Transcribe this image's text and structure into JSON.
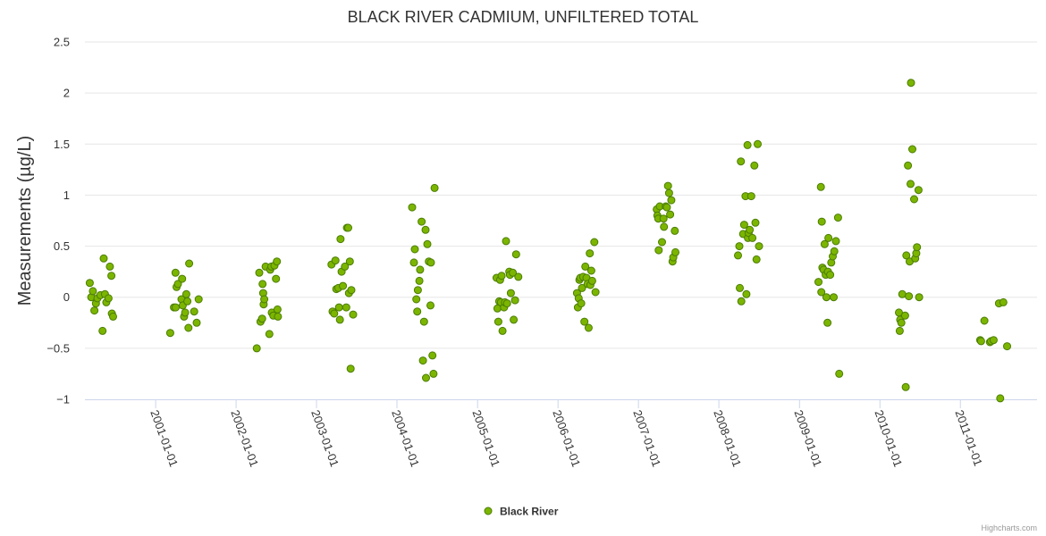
{
  "chart_data": {
    "type": "scatter",
    "title": "BLACK RIVER CADMIUM, UNFILTERED TOTAL",
    "ylabel": "Measurements (µg/L)",
    "xlabel": "",
    "ylim": [
      -1,
      2.5
    ],
    "yticks": [
      "−1",
      "−0.5",
      "0",
      "0.5",
      "1",
      "1.5",
      "2",
      "2.5"
    ],
    "ytick_values": [
      -1,
      -0.5,
      0,
      0.5,
      1,
      1.5,
      2,
      2.5
    ],
    "xlim": [
      "2000-02-15",
      "2011-12-15"
    ],
    "xticks": [
      "2001-01-01",
      "2002-01-01",
      "2003-01-01",
      "2004-01-01",
      "2005-01-01",
      "2006-01-01",
      "2007-01-01",
      "2008-01-01",
      "2009-01-01",
      "2010-01-01",
      "2011-01-01"
    ],
    "color": "#7cb500",
    "marker_stroke": "#4a7d00",
    "legend": {
      "placement": "bottom-center",
      "label": "Black River"
    },
    "credits": "Highcharts.com",
    "series": [
      {
        "name": "Black River",
        "points": [
          [
            "2000-03-08",
            0.14
          ],
          [
            "2000-03-15",
            0.0
          ],
          [
            "2000-03-22",
            0.06
          ],
          [
            "2000-03-29",
            -0.13
          ],
          [
            "2000-04-05",
            -0.06
          ],
          [
            "2000-04-12",
            -0.01
          ],
          [
            "2000-04-25",
            0.02
          ],
          [
            "2000-05-05",
            -0.33
          ],
          [
            "2000-05-10",
            0.38
          ],
          [
            "2000-05-16",
            0.03
          ],
          [
            "2000-05-22",
            -0.05
          ],
          [
            "2000-06-01",
            -0.01
          ],
          [
            "2000-06-07",
            0.3
          ],
          [
            "2000-06-14",
            0.21
          ],
          [
            "2000-06-16",
            -0.16
          ],
          [
            "2000-06-22",
            -0.19
          ],
          [
            "2001-03-08",
            -0.35
          ],
          [
            "2001-03-25",
            -0.1
          ],
          [
            "2001-04-01",
            0.24
          ],
          [
            "2001-04-02",
            -0.1
          ],
          [
            "2001-04-06",
            0.1
          ],
          [
            "2001-04-12",
            0.13
          ],
          [
            "2001-04-28",
            -0.02
          ],
          [
            "2001-05-01",
            0.18
          ],
          [
            "2001-05-04",
            -0.08
          ],
          [
            "2001-05-10",
            -0.19
          ],
          [
            "2001-05-15",
            -0.15
          ],
          [
            "2001-05-20",
            0.03
          ],
          [
            "2001-05-25",
            -0.04
          ],
          [
            "2001-05-30",
            -0.3
          ],
          [
            "2001-06-02",
            0.33
          ],
          [
            "2001-06-25",
            -0.14
          ],
          [
            "2001-07-06",
            -0.25
          ],
          [
            "2001-07-15",
            -0.02
          ],
          [
            "2002-04-05",
            -0.5
          ],
          [
            "2002-04-16",
            0.24
          ],
          [
            "2002-04-22",
            -0.24
          ],
          [
            "2002-04-29",
            -0.21
          ],
          [
            "2002-05-01",
            0.13
          ],
          [
            "2002-05-04",
            0.04
          ],
          [
            "2002-05-06",
            -0.07
          ],
          [
            "2002-05-09",
            -0.02
          ],
          [
            "2002-05-15",
            0.3
          ],
          [
            "2002-06-01",
            -0.36
          ],
          [
            "2002-06-05",
            0.27
          ],
          [
            "2002-06-10",
            0.3
          ],
          [
            "2002-06-12",
            -0.15
          ],
          [
            "2002-06-19",
            -0.18
          ],
          [
            "2002-06-24",
            0.31
          ],
          [
            "2002-07-01",
            0.18
          ],
          [
            "2002-07-05",
            0.35
          ],
          [
            "2002-07-08",
            -0.12
          ],
          [
            "2002-07-10",
            -0.19
          ],
          [
            "2003-03-10",
            0.32
          ],
          [
            "2003-03-15",
            -0.14
          ],
          [
            "2003-03-22",
            -0.16
          ],
          [
            "2003-03-28",
            0.36
          ],
          [
            "2003-04-01",
            0.08
          ],
          [
            "2003-04-10",
            0.09
          ],
          [
            "2003-04-13",
            -0.1
          ],
          [
            "2003-04-17",
            -0.22
          ],
          [
            "2003-04-20",
            0.57
          ],
          [
            "2003-04-25",
            0.25
          ],
          [
            "2003-05-01",
            0.11
          ],
          [
            "2003-05-10",
            0.3
          ],
          [
            "2003-05-16",
            -0.1
          ],
          [
            "2003-05-19",
            0.68
          ],
          [
            "2003-05-25",
            0.68
          ],
          [
            "2003-05-28",
            0.04
          ],
          [
            "2003-06-01",
            0.35
          ],
          [
            "2003-06-05",
            -0.7
          ],
          [
            "2003-06-08",
            0.07
          ],
          [
            "2003-06-16",
            -0.17
          ],
          [
            "2004-03-10",
            0.88
          ],
          [
            "2004-03-18",
            0.34
          ],
          [
            "2004-03-22",
            0.47
          ],
          [
            "2004-03-29",
            -0.02
          ],
          [
            "2004-04-02",
            -0.14
          ],
          [
            "2004-04-05",
            0.07
          ],
          [
            "2004-04-12",
            0.16
          ],
          [
            "2004-04-15",
            0.27
          ],
          [
            "2004-04-22",
            0.74
          ],
          [
            "2004-04-28",
            -0.62
          ],
          [
            "2004-05-03",
            -0.24
          ],
          [
            "2004-05-10",
            0.66
          ],
          [
            "2004-05-12",
            -0.79
          ],
          [
            "2004-05-18",
            0.52
          ],
          [
            "2004-05-25",
            0.35
          ],
          [
            "2004-06-01",
            -0.08
          ],
          [
            "2004-06-03",
            0.34
          ],
          [
            "2004-06-10",
            -0.57
          ],
          [
            "2004-06-15",
            -0.75
          ],
          [
            "2004-06-20",
            1.07
          ],
          [
            "2005-03-28",
            0.19
          ],
          [
            "2005-04-01",
            -0.11
          ],
          [
            "2005-04-05",
            -0.24
          ],
          [
            "2005-04-09",
            -0.04
          ],
          [
            "2005-04-13",
            0.17
          ],
          [
            "2005-04-17",
            -0.05
          ],
          [
            "2005-04-20",
            0.21
          ],
          [
            "2005-04-24",
            -0.33
          ],
          [
            "2005-05-01",
            -0.1
          ],
          [
            "2005-05-05",
            -0.05
          ],
          [
            "2005-05-10",
            0.55
          ],
          [
            "2005-05-15",
            -0.06
          ],
          [
            "2005-05-25",
            0.25
          ],
          [
            "2005-05-28",
            0.22
          ],
          [
            "2005-06-01",
            0.04
          ],
          [
            "2005-06-10",
            0.24
          ],
          [
            "2005-06-14",
            -0.22
          ],
          [
            "2005-06-20",
            -0.03
          ],
          [
            "2005-06-25",
            0.42
          ],
          [
            "2005-07-05",
            0.2
          ],
          [
            "2006-03-28",
            0.04
          ],
          [
            "2006-04-01",
            -0.1
          ],
          [
            "2006-04-05",
            -0.01
          ],
          [
            "2006-04-08",
            0.17
          ],
          [
            "2006-04-12",
            0.19
          ],
          [
            "2006-04-16",
            -0.06
          ],
          [
            "2006-04-20",
            0.09
          ],
          [
            "2006-04-25",
            0.2
          ],
          [
            "2006-05-01",
            -0.24
          ],
          [
            "2006-05-05",
            0.3
          ],
          [
            "2006-05-10",
            0.19
          ],
          [
            "2006-05-15",
            0.13
          ],
          [
            "2006-05-20",
            -0.3
          ],
          [
            "2006-05-25",
            0.43
          ],
          [
            "2006-05-28",
            0.12
          ],
          [
            "2006-06-01",
            0.26
          ],
          [
            "2006-06-05",
            0.16
          ],
          [
            "2006-06-15",
            0.54
          ],
          [
            "2006-06-20",
            0.05
          ],
          [
            "2007-03-25",
            0.86
          ],
          [
            "2007-03-28",
            0.8
          ],
          [
            "2007-04-01",
            0.77
          ],
          [
            "2007-04-03",
            0.46
          ],
          [
            "2007-04-08",
            0.89
          ],
          [
            "2007-04-18",
            0.54
          ],
          [
            "2007-04-25",
            0.77
          ],
          [
            "2007-04-27",
            0.69
          ],
          [
            "2007-05-05",
            0.89
          ],
          [
            "2007-05-10",
            0.88
          ],
          [
            "2007-05-15",
            1.09
          ],
          [
            "2007-05-20",
            1.02
          ],
          [
            "2007-05-25",
            0.81
          ],
          [
            "2007-05-30",
            0.95
          ],
          [
            "2007-06-05",
            0.35
          ],
          [
            "2007-06-08",
            0.39
          ],
          [
            "2007-06-15",
            0.65
          ],
          [
            "2007-06-18",
            0.44
          ],
          [
            "2008-03-28",
            0.41
          ],
          [
            "2008-04-03",
            0.5
          ],
          [
            "2008-04-05",
            0.09
          ],
          [
            "2008-04-10",
            1.33
          ],
          [
            "2008-04-12",
            -0.04
          ],
          [
            "2008-04-20",
            0.62
          ],
          [
            "2008-04-25",
            0.71
          ],
          [
            "2008-05-01",
            0.99
          ],
          [
            "2008-05-05",
            0.03
          ],
          [
            "2008-05-10",
            1.49
          ],
          [
            "2008-05-12",
            0.58
          ],
          [
            "2008-05-15",
            0.63
          ],
          [
            "2008-05-20",
            0.66
          ],
          [
            "2008-05-27",
            0.99
          ],
          [
            "2008-06-01",
            0.58
          ],
          [
            "2008-06-10",
            1.29
          ],
          [
            "2008-06-15",
            0.73
          ],
          [
            "2008-06-20",
            0.37
          ],
          [
            "2008-06-25",
            1.5
          ],
          [
            "2008-07-01",
            0.5
          ],
          [
            "2009-03-28",
            0.15
          ],
          [
            "2009-04-08",
            1.08
          ],
          [
            "2009-04-10",
            0.05
          ],
          [
            "2009-04-12",
            0.74
          ],
          [
            "2009-04-15",
            0.29
          ],
          [
            "2009-04-20",
            0.27
          ],
          [
            "2009-04-25",
            0.52
          ],
          [
            "2009-04-30",
            0.22
          ],
          [
            "2009-05-03",
            0.0
          ],
          [
            "2009-05-08",
            -0.25
          ],
          [
            "2009-05-10",
            0.25
          ],
          [
            "2009-05-12",
            0.58
          ],
          [
            "2009-05-20",
            0.22
          ],
          [
            "2009-05-25",
            0.34
          ],
          [
            "2009-06-01",
            0.4
          ],
          [
            "2009-06-05",
            0.0
          ],
          [
            "2009-06-08",
            0.45
          ],
          [
            "2009-06-15",
            0.55
          ],
          [
            "2009-06-25",
            0.78
          ],
          [
            "2009-06-30",
            -0.75
          ],
          [
            "2010-03-28",
            -0.15
          ],
          [
            "2010-04-01",
            -0.33
          ],
          [
            "2010-04-03",
            -0.22
          ],
          [
            "2010-04-08",
            -0.25
          ],
          [
            "2010-04-12",
            0.03
          ],
          [
            "2010-04-25",
            -0.18
          ],
          [
            "2010-04-28",
            -0.88
          ],
          [
            "2010-05-01",
            0.41
          ],
          [
            "2010-05-08",
            1.29
          ],
          [
            "2010-05-12",
            0.01
          ],
          [
            "2010-05-16",
            0.35
          ],
          [
            "2010-05-20",
            1.11
          ],
          [
            "2010-05-22",
            2.1
          ],
          [
            "2010-05-28",
            1.45
          ],
          [
            "2010-06-05",
            0.96
          ],
          [
            "2010-06-10",
            0.38
          ],
          [
            "2010-06-15",
            0.43
          ],
          [
            "2010-06-18",
            0.49
          ],
          [
            "2010-06-25",
            1.05
          ],
          [
            "2010-06-28",
            0.0
          ],
          [
            "2011-04-01",
            -0.42
          ],
          [
            "2011-04-05",
            -0.43
          ],
          [
            "2011-04-20",
            -0.23
          ],
          [
            "2011-05-15",
            -0.44
          ],
          [
            "2011-05-20",
            -0.43
          ],
          [
            "2011-06-01",
            -0.42
          ],
          [
            "2011-06-25",
            -0.06
          ],
          [
            "2011-07-01",
            -0.99
          ],
          [
            "2011-07-15",
            -0.05
          ],
          [
            "2011-08-01",
            -0.48
          ]
        ]
      }
    ]
  }
}
